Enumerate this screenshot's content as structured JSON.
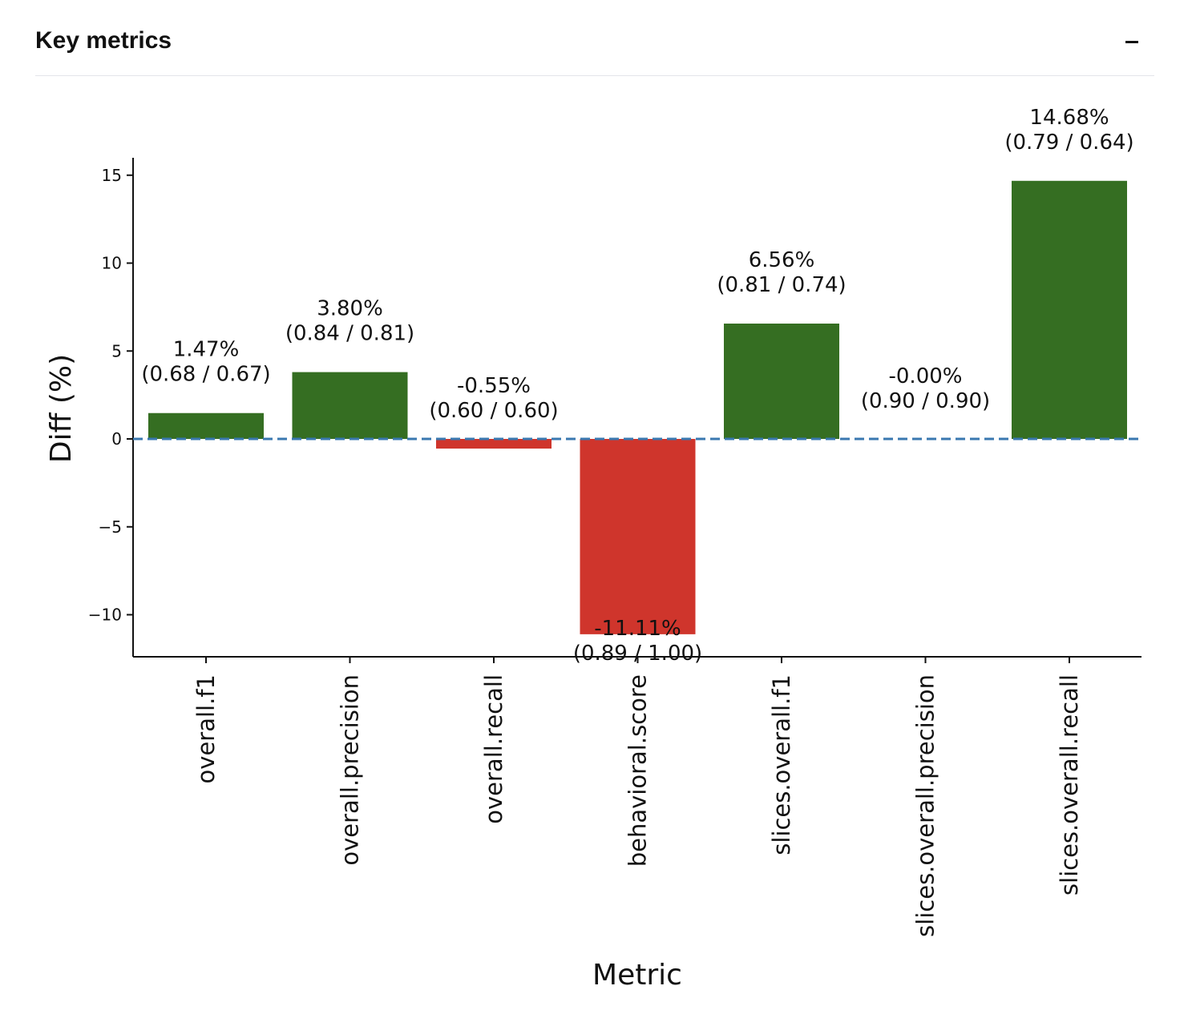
{
  "panel": {
    "title": "Key metrics",
    "collapse_icon": "minus-icon"
  },
  "colors": {
    "positive": "#356e22",
    "negative": "#cf352c",
    "baseline": "#3a78b0"
  },
  "chart_data": {
    "type": "bar",
    "xlabel": "Metric",
    "ylabel": "Diff (%)",
    "ylim": [
      -12.3,
      16.0
    ],
    "yticks": [
      {
        "value": 15,
        "label": "15"
      },
      {
        "value": 10,
        "label": "10"
      },
      {
        "value": 5,
        "label": "5"
      },
      {
        "value": 0,
        "label": "0"
      },
      {
        "value": -5,
        "label": "−5"
      },
      {
        "value": -10,
        "label": "−10"
      }
    ],
    "baseline": 0,
    "grid": false,
    "categories": [
      "overall.f1",
      "overall.precision",
      "overall.recall",
      "behavioral.score",
      "slices.overall.f1",
      "slices.overall.precision",
      "slices.overall.recall"
    ],
    "values": [
      1.47,
      3.8,
      -0.55,
      -11.11,
      6.56,
      -0.0,
      14.68
    ],
    "labels": [
      {
        "pct": "1.47%",
        "pair": "(0.68 / 0.67)"
      },
      {
        "pct": "3.80%",
        "pair": "(0.84 / 0.81)"
      },
      {
        "pct": "-0.55%",
        "pair": "(0.60 / 0.60)"
      },
      {
        "pct": "-11.11%",
        "pair": "(0.89 / 1.00)"
      },
      {
        "pct": "6.56%",
        "pair": "(0.81 / 0.74)"
      },
      {
        "pct": "-0.00%",
        "pair": "(0.90 / 0.90)"
      },
      {
        "pct": "14.68%",
        "pair": "(0.79 / 0.64)"
      }
    ]
  }
}
